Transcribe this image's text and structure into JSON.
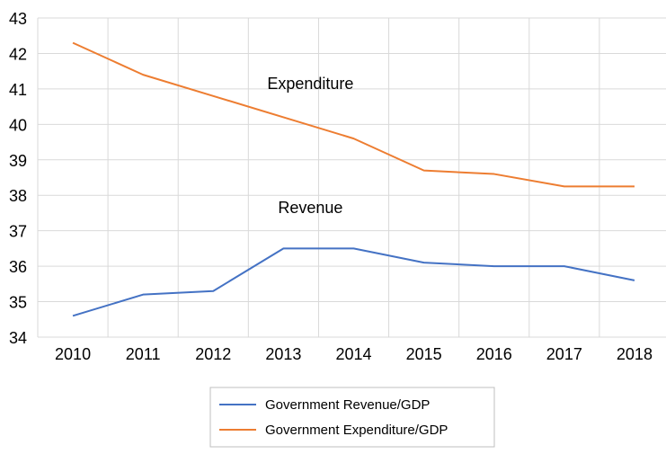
{
  "chart_data": {
    "type": "line",
    "categories": [
      "2010",
      "2011",
      "2012",
      "2013",
      "2014",
      "2015",
      "2016",
      "2017",
      "2018"
    ],
    "series": [
      {
        "name": "Government Revenue/GDP",
        "color": "#4472c4",
        "values": [
          34.6,
          35.2,
          35.3,
          36.5,
          36.5,
          36.1,
          36.0,
          36.0,
          35.6
        ]
      },
      {
        "name": "Government Expenditure/GDP",
        "color": "#ed7d31",
        "values": [
          42.3,
          41.4,
          40.8,
          40.2,
          39.6,
          38.7,
          38.6,
          38.25,
          38.25
        ]
      }
    ],
    "ylim": [
      34,
      43
    ],
    "yticks": [
      "34",
      "35",
      "36",
      "37",
      "38",
      "39",
      "40",
      "41",
      "42",
      "43"
    ],
    "grid": true,
    "legend": "bottom-center",
    "annotations": [
      {
        "text": "Expenditure",
        "x": "2013",
        "y": 41.0
      },
      {
        "text": "Revenue",
        "x": "2013",
        "y": 37.5
      }
    ]
  }
}
